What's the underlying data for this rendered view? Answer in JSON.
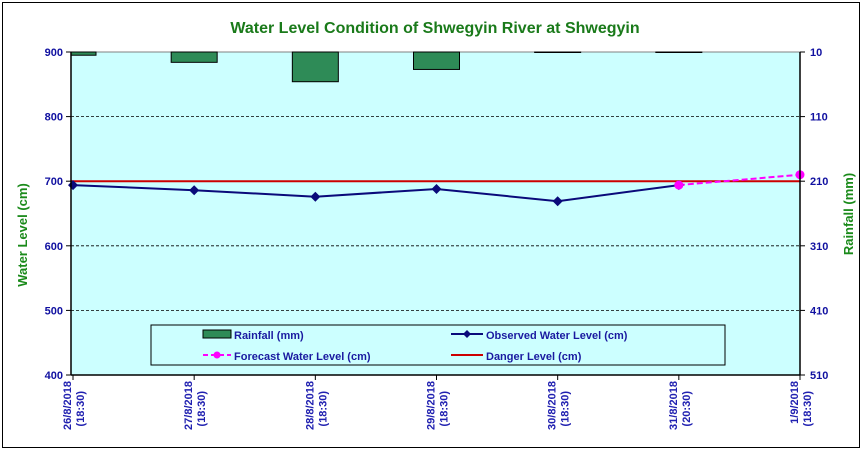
{
  "chart_data": {
    "type": "line",
    "title": "Water Level Condition of Shwegyin  River at  Shwegyin",
    "ylabel": "Water Level (cm)",
    "y2label": "Rainfall (mm)",
    "ylim": [
      400,
      900
    ],
    "y2lim": [
      10,
      510
    ],
    "y2_reversed": true,
    "yticks": [
      "400",
      "500",
      "600",
      "700",
      "800",
      "900"
    ],
    "y2ticks": [
      "10",
      "110",
      "210",
      "310",
      "410",
      "510"
    ],
    "categories": [
      [
        "26/8/2018",
        "(18:30)"
      ],
      [
        "27/8/2018",
        "(18:30)"
      ],
      [
        "28/8/2018",
        "(18:30)"
      ],
      [
        "29/8/2018",
        "(18:30)"
      ],
      [
        "30/8/2018",
        "(18:30)"
      ],
      [
        "31/8/2018",
        "(20:30)"
      ],
      [
        "1/9/2018",
        "(18:30)"
      ]
    ],
    "series": [
      {
        "name": "Rainfall (mm)",
        "kind": "bar",
        "axis": "right",
        "color": "#2e8b57",
        "values": [
          15,
          26,
          56,
          37,
          10,
          10,
          null
        ]
      },
      {
        "name": "Observed Water Level (cm)",
        "kind": "line",
        "axis": "left",
        "color": "#0a0a7a",
        "marker": "diamond",
        "values": [
          694,
          686,
          676,
          688,
          669,
          694,
          null
        ]
      },
      {
        "name": "Forecast Water Level (cm)",
        "kind": "line-dashed",
        "axis": "left",
        "color": "#ff00ff",
        "marker": "circle",
        "values": [
          null,
          null,
          null,
          null,
          null,
          694,
          710
        ]
      },
      {
        "name": "Danger Level (cm)",
        "kind": "hline",
        "axis": "left",
        "color": "#cc0000",
        "value": 700
      }
    ],
    "legend": {
      "placement": "bottom-center",
      "items": [
        "Rainfall (mm)",
        "Observed Water Level (cm)",
        "Forecast Water Level (cm)",
        "Danger Level (cm)"
      ]
    },
    "grid": "horizontal-dashed",
    "plot_background": "#ccffff"
  }
}
